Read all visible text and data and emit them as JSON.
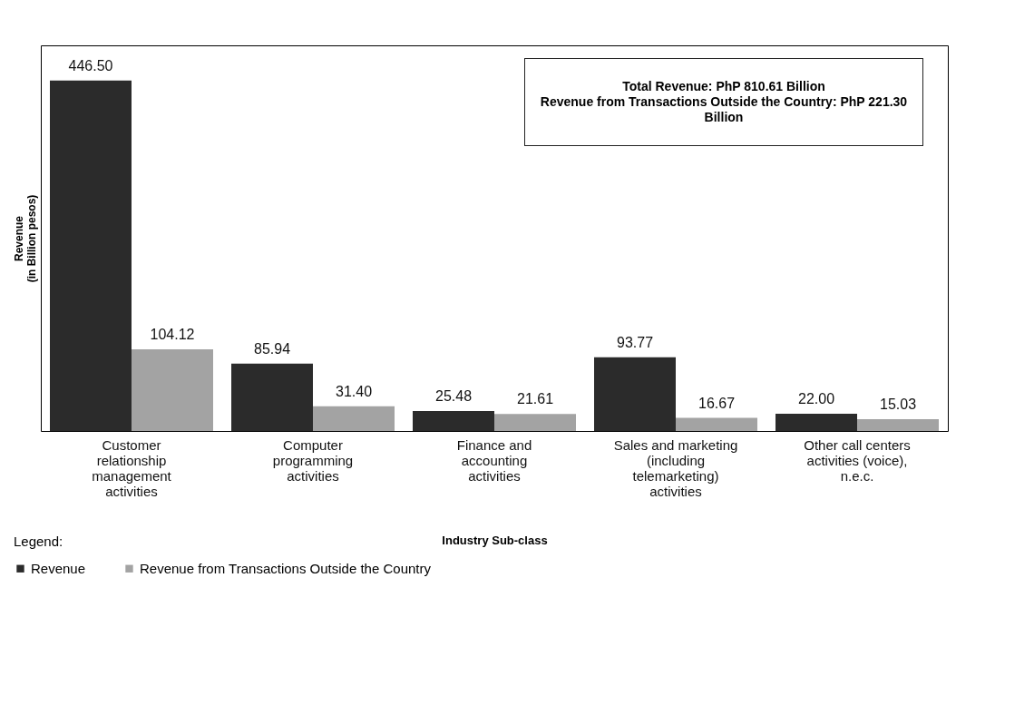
{
  "chart_data": {
    "type": "bar",
    "xlabel": "Industry Sub-class",
    "ylabel": "Revenue (in Billion pesos)",
    "legend_title": "Legend:",
    "legend": "bottom left",
    "categories": [
      "Customer relationship management activities",
      "Computer programming activities",
      "Finance and accounting activities",
      "Sales and marketing (including telemarketing) activities",
      "Other call centers activities (voice), n.e.c."
    ],
    "series": [
      {
        "name": "Revenue",
        "color": "#2b2b2b",
        "values": [
          446.5,
          85.94,
          25.48,
          93.77,
          22.0
        ],
        "value_labels": [
          "446.50",
          "85.94",
          "25.48",
          "93.77",
          "22.00"
        ]
      },
      {
        "name": "Revenue from Transactions Outside the Country",
        "color": "#a3a3a3",
        "values": [
          104.12,
          31.4,
          21.61,
          16.67,
          15.03
        ],
        "value_labels": [
          "104.12",
          "31.40",
          "21.61",
          "16.67",
          "15.03"
        ]
      }
    ],
    "annotations": [
      "Total Revenue: PhP 810.61 Billion",
      "Revenue from Transactions Outside the Country: PhP 221.30 Billion"
    ],
    "grid": false
  }
}
